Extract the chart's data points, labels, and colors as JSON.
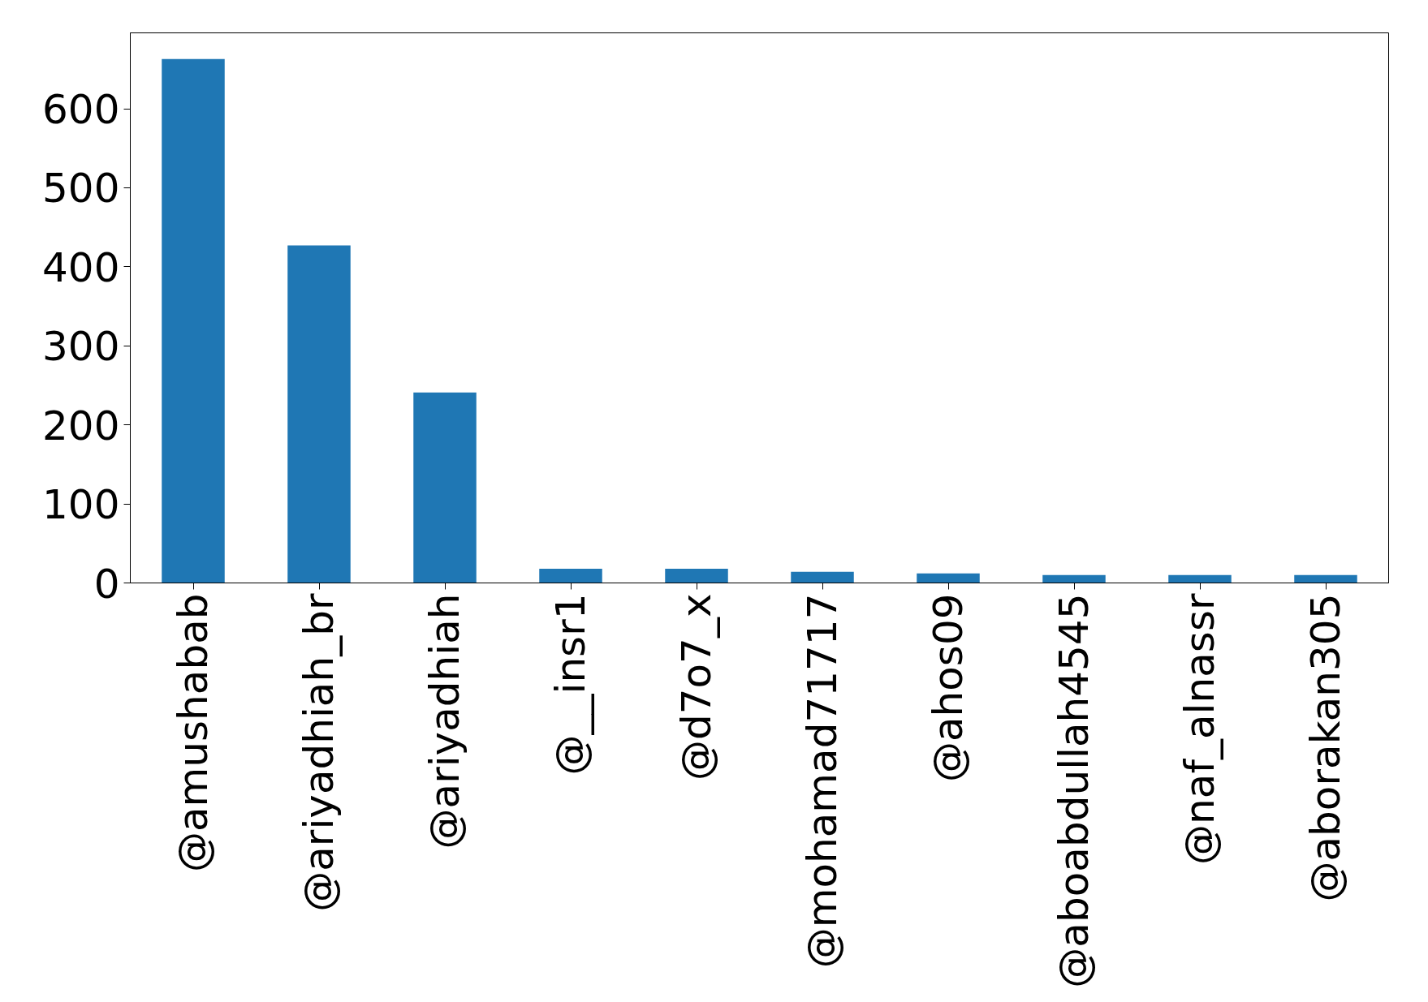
{
  "chart_data": {
    "type": "bar",
    "categories": [
      "@amushabab",
      "@ariyadhiah_br",
      "@ariyadhiah",
      "@__insr1",
      "@d7o7_x",
      "@mohamad71717",
      "@ahos09",
      "@aboabdullah4545",
      "@naf_alnassr",
      "@aborakan305"
    ],
    "values": [
      663,
      427,
      241,
      18,
      18,
      14,
      12,
      10,
      10,
      10
    ],
    "color": "#1f77b4",
    "ylim": [
      0,
      696
    ],
    "yticks": [
      0,
      100,
      200,
      300,
      400,
      500,
      600
    ],
    "grid": false
  }
}
